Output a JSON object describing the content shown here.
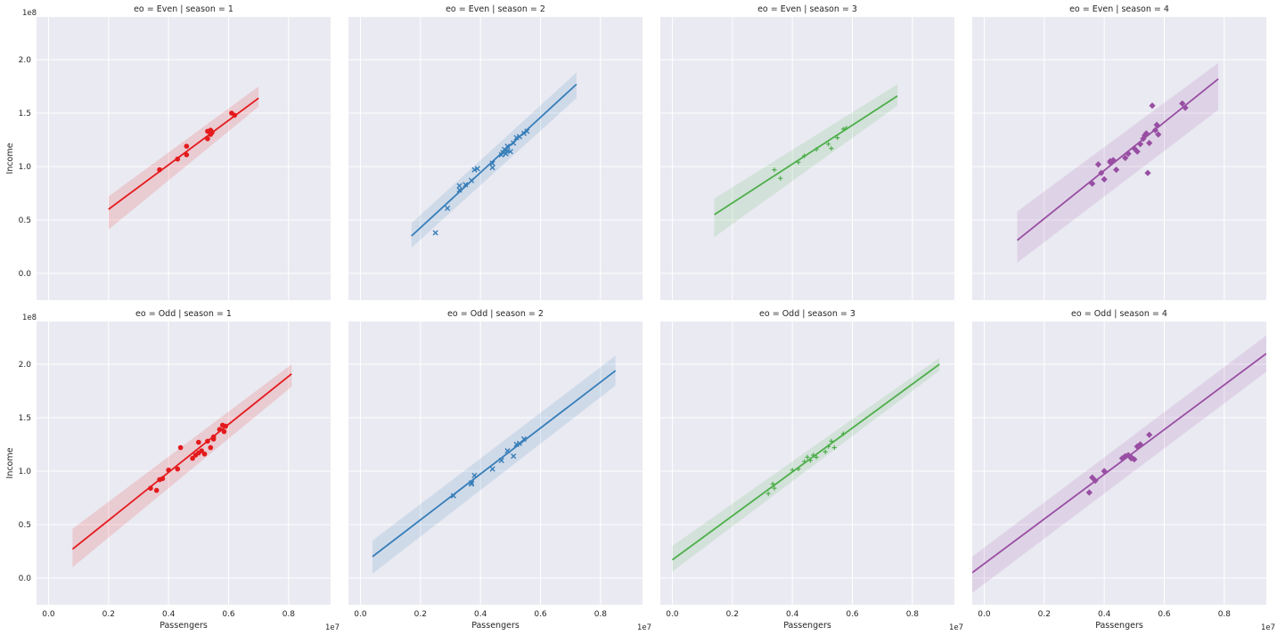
{
  "colors": {
    "panel_bg": "#eaeaf2",
    "grid": "#ffffff",
    "text": "#262626",
    "season_1": "#e41a1c",
    "season_2": "#377eb8",
    "season_3": "#4daf4a",
    "season_4": "#984ea3"
  },
  "chart_data": {
    "type": "scatter",
    "facet_grid": {
      "rows": [
        "Even",
        "Odd"
      ],
      "cols": [
        1,
        2,
        3,
        4
      ]
    },
    "xlabel": "Passengers",
    "ylabel": "Income",
    "x_offset_text": "1e7",
    "y_offset_text": "1e8",
    "xlim": [
      -0.04,
      0.94
    ],
    "ylim": [
      -0.25,
      2.4
    ],
    "x_ticks": [
      "0.0",
      "0.2",
      "0.4",
      "0.6",
      "0.8"
    ],
    "y_ticks": [
      "0.0",
      "0.5",
      "1.0",
      "1.5",
      "2.0"
    ],
    "x_tick_values": [
      0,
      0.2,
      0.4,
      0.6,
      0.8
    ],
    "y_tick_values": [
      0,
      0.5,
      1.0,
      1.5,
      2.0
    ],
    "grid": true,
    "regression_ci": true,
    "panels": [
      {
        "title": "eo = Even | season = 1",
        "row": 0,
        "col": 0,
        "marker": "o",
        "color_key": "season_1",
        "points": [
          [
            0.37,
            0.97
          ],
          [
            0.43,
            1.07
          ],
          [
            0.46,
            1.11
          ],
          [
            0.46,
            1.19
          ],
          [
            0.53,
            1.26
          ],
          [
            0.53,
            1.33
          ],
          [
            0.54,
            1.3
          ],
          [
            0.54,
            1.34
          ],
          [
            0.545,
            1.32
          ],
          [
            0.61,
            1.5
          ],
          [
            0.62,
            1.48
          ]
        ],
        "fit": {
          "x": [
            0.2,
            0.7
          ],
          "y": [
            0.6,
            1.64
          ],
          "ci_low_y": [
            0.41,
            1.56
          ],
          "ci_high_y": [
            0.72,
            1.75
          ]
        }
      },
      {
        "title": "eo = Even | season = 2",
        "row": 0,
        "col": 1,
        "marker": "x",
        "color_key": "season_2",
        "points": [
          [
            0.25,
            0.38
          ],
          [
            0.29,
            0.61
          ],
          [
            0.33,
            0.78
          ],
          [
            0.33,
            0.82
          ],
          [
            0.35,
            0.83
          ],
          [
            0.37,
            0.87
          ],
          [
            0.38,
            0.97
          ],
          [
            0.39,
            0.98
          ],
          [
            0.44,
            0.99
          ],
          [
            0.44,
            1.03
          ],
          [
            0.47,
            1.11
          ],
          [
            0.475,
            1.13
          ],
          [
            0.48,
            1.16
          ],
          [
            0.485,
            1.12
          ],
          [
            0.49,
            1.15
          ],
          [
            0.49,
            1.19
          ],
          [
            0.5,
            1.14
          ],
          [
            0.51,
            1.22
          ],
          [
            0.52,
            1.27
          ],
          [
            0.53,
            1.28
          ],
          [
            0.545,
            1.31
          ],
          [
            0.555,
            1.33
          ]
        ],
        "fit": {
          "x": [
            0.17,
            0.72
          ],
          "y": [
            0.35,
            1.77
          ],
          "ci_low_y": [
            0.24,
            1.64
          ],
          "ci_high_y": [
            0.47,
            1.88
          ]
        }
      },
      {
        "title": "eo = Even | season = 3",
        "row": 0,
        "col": 2,
        "marker": "+",
        "color_key": "season_3",
        "points": [
          [
            0.34,
            0.97
          ],
          [
            0.36,
            0.89
          ],
          [
            0.42,
            1.04
          ],
          [
            0.44,
            1.1
          ],
          [
            0.48,
            1.16
          ],
          [
            0.52,
            1.21
          ],
          [
            0.53,
            1.17
          ],
          [
            0.55,
            1.27
          ],
          [
            0.57,
            1.35
          ],
          [
            0.58,
            1.36
          ]
        ],
        "fit": {
          "x": [
            0.14,
            0.75
          ],
          "y": [
            0.55,
            1.66
          ],
          "ci_low_y": [
            0.34,
            1.57
          ],
          "ci_high_y": [
            0.7,
            1.77
          ]
        }
      },
      {
        "title": "eo = Even | season = 4",
        "row": 0,
        "col": 3,
        "marker": "D",
        "color_key": "season_4",
        "points": [
          [
            0.36,
            0.84
          ],
          [
            0.38,
            1.02
          ],
          [
            0.39,
            0.94
          ],
          [
            0.4,
            0.88
          ],
          [
            0.42,
            1.04
          ],
          [
            0.42,
            1.05
          ],
          [
            0.43,
            1.06
          ],
          [
            0.44,
            0.97
          ],
          [
            0.47,
            1.08
          ],
          [
            0.48,
            1.12
          ],
          [
            0.5,
            1.17
          ],
          [
            0.51,
            1.14
          ],
          [
            0.52,
            1.21
          ],
          [
            0.53,
            1.26
          ],
          [
            0.535,
            1.29
          ],
          [
            0.54,
            1.31
          ],
          [
            0.545,
            0.94
          ],
          [
            0.55,
            1.22
          ],
          [
            0.56,
            1.57
          ],
          [
            0.57,
            1.34
          ],
          [
            0.575,
            1.39
          ],
          [
            0.58,
            1.3
          ],
          [
            0.66,
            1.59
          ],
          [
            0.67,
            1.55
          ]
        ],
        "fit": {
          "x": [
            0.11,
            0.78
          ],
          "y": [
            0.31,
            1.82
          ],
          "ci_low_y": [
            0.1,
            1.53
          ],
          "ci_high_y": [
            0.58,
            1.97
          ]
        }
      },
      {
        "title": "eo = Odd | season = 1",
        "row": 1,
        "col": 0,
        "marker": "o",
        "color_key": "season_1",
        "points": [
          [
            0.34,
            0.84
          ],
          [
            0.36,
            0.82
          ],
          [
            0.37,
            0.92
          ],
          [
            0.38,
            0.93
          ],
          [
            0.4,
            1.01
          ],
          [
            0.43,
            1.02
          ],
          [
            0.44,
            1.22
          ],
          [
            0.48,
            1.12
          ],
          [
            0.49,
            1.15
          ],
          [
            0.5,
            1.17
          ],
          [
            0.5,
            1.27
          ],
          [
            0.51,
            1.19
          ],
          [
            0.52,
            1.16
          ],
          [
            0.53,
            1.28
          ],
          [
            0.54,
            1.22
          ],
          [
            0.55,
            1.3
          ],
          [
            0.55,
            1.32
          ],
          [
            0.57,
            1.39
          ],
          [
            0.58,
            1.43
          ],
          [
            0.585,
            1.37
          ],
          [
            0.59,
            1.42
          ]
        ],
        "fit": {
          "x": [
            0.08,
            0.81
          ],
          "y": [
            0.27,
            1.91
          ],
          "ci_low_y": [
            0.1,
            1.79
          ],
          "ci_high_y": [
            0.46,
            2.0
          ]
        }
      },
      {
        "title": "eo = Odd | season = 2",
        "row": 1,
        "col": 1,
        "marker": "x",
        "color_key": "season_2",
        "points": [
          [
            0.31,
            0.77
          ],
          [
            0.37,
            0.88
          ],
          [
            0.37,
            0.89
          ],
          [
            0.38,
            0.96
          ],
          [
            0.44,
            1.02
          ],
          [
            0.47,
            1.1
          ],
          [
            0.49,
            1.19
          ],
          [
            0.51,
            1.14
          ],
          [
            0.52,
            1.25
          ],
          [
            0.53,
            1.26
          ],
          [
            0.545,
            1.3
          ]
        ],
        "fit": {
          "x": [
            0.04,
            0.85
          ],
          "y": [
            0.2,
            1.94
          ],
          "ci_low_y": [
            0.04,
            1.8
          ],
          "ci_high_y": [
            0.35,
            2.08
          ]
        }
      },
      {
        "title": "eo = Odd | season = 3",
        "row": 1,
        "col": 2,
        "marker": "+",
        "color_key": "season_3",
        "points": [
          [
            0.32,
            0.79
          ],
          [
            0.335,
            0.88
          ],
          [
            0.34,
            0.84
          ],
          [
            0.4,
            1.01
          ],
          [
            0.42,
            1.02
          ],
          [
            0.44,
            1.09
          ],
          [
            0.45,
            1.13
          ],
          [
            0.46,
            1.1
          ],
          [
            0.47,
            1.15
          ],
          [
            0.48,
            1.13
          ],
          [
            0.51,
            1.18
          ],
          [
            0.52,
            1.23
          ],
          [
            0.53,
            1.28
          ],
          [
            0.54,
            1.22
          ],
          [
            0.57,
            1.35
          ]
        ],
        "fit": {
          "x": [
            0.0,
            0.89
          ],
          "y": [
            0.17,
            2.0
          ],
          "ci_low_y": [
            0.06,
            1.94
          ],
          "ci_high_y": [
            0.3,
            2.06
          ]
        }
      },
      {
        "title": "eo = Odd | season = 4",
        "row": 1,
        "col": 3,
        "marker": "D",
        "color_key": "season_4",
        "points": [
          [
            0.35,
            0.8
          ],
          [
            0.36,
            0.94
          ],
          [
            0.37,
            0.91
          ],
          [
            0.4,
            1.0
          ],
          [
            0.46,
            1.12
          ],
          [
            0.47,
            1.14
          ],
          [
            0.48,
            1.15
          ],
          [
            0.49,
            1.12
          ],
          [
            0.49,
            1.13
          ],
          [
            0.5,
            1.11
          ],
          [
            0.51,
            1.23
          ],
          [
            0.52,
            1.25
          ],
          [
            0.55,
            1.34
          ]
        ],
        "fit": {
          "x": [
            -0.04,
            0.94
          ],
          "y": [
            0.05,
            2.1
          ],
          "ci_low_y": [
            -0.14,
            1.93
          ],
          "ci_high_y": [
            0.2,
            2.27
          ]
        }
      }
    ]
  }
}
